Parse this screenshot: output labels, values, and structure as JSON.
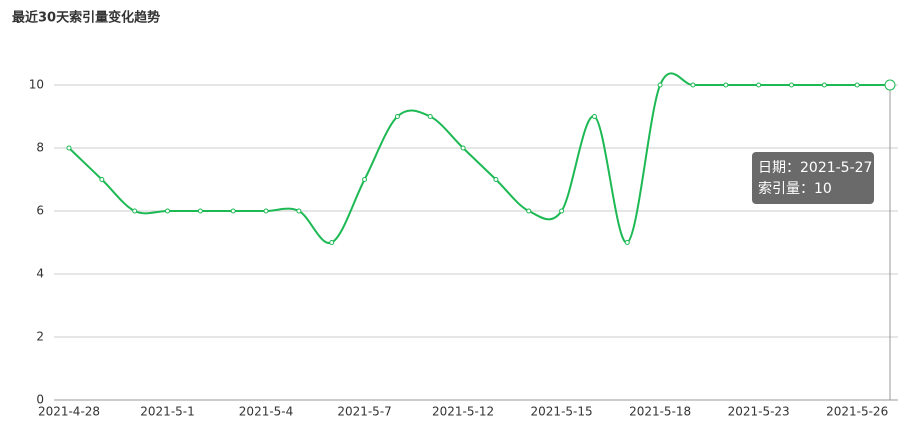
{
  "chart_data": {
    "type": "line",
    "title": "最近30天索引量变化趋势",
    "categories": [
      "2021-4-28",
      null,
      null,
      "2021-5-1",
      null,
      null,
      "2021-5-4",
      null,
      null,
      "2021-5-7",
      null,
      null,
      "2021-5-12",
      null,
      null,
      "2021-5-15",
      null,
      null,
      "2021-5-18",
      null,
      null,
      "2021-5-23",
      null,
      null,
      "2021-5-26",
      null
    ],
    "series": [
      {
        "name": "索引量",
        "color": "#1db954",
        "values": [
          8,
          7,
          6,
          6,
          6,
          6,
          6,
          6,
          5,
          7,
          9,
          9,
          8,
          7,
          6,
          6,
          9,
          5,
          10,
          10,
          10,
          10,
          10,
          10,
          10,
          10
        ]
      }
    ],
    "ylim": [
      0,
      10
    ],
    "yticks": [
      0,
      2,
      4,
      6,
      8,
      10
    ],
    "grid": true,
    "tooltip": {
      "lines": [
        "日期：2021-5-27",
        "索引量：10"
      ]
    }
  }
}
